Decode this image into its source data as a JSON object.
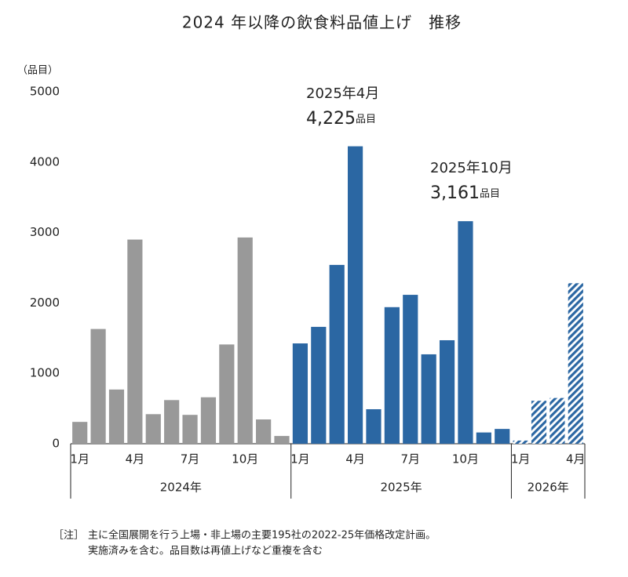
{
  "chart_data": {
    "type": "bar",
    "title": "2024 年以降の飲食料品値上げ　推移",
    "y_label": "（品目）",
    "ylim": [
      0,
      5000
    ],
    "yticks": [
      0,
      1000,
      2000,
      3000,
      4000,
      5000
    ],
    "grid": false,
    "groups": [
      {
        "label": "2024年",
        "color": "#999999",
        "hatched": false,
        "categories": [
          "1月",
          null,
          null,
          "4月",
          null,
          null,
          "7月",
          null,
          null,
          "10月",
          null,
          null
        ],
        "values": [
          310,
          1630,
          770,
          2900,
          420,
          620,
          410,
          660,
          1410,
          2930,
          345,
          110
        ]
      },
      {
        "label": "2025年",
        "color": "#2b67a3",
        "hatched": false,
        "categories": [
          "1月",
          null,
          null,
          "4月",
          null,
          null,
          "7月",
          null,
          null,
          "10月",
          null,
          null
        ],
        "values": [
          1425,
          1660,
          2540,
          4225,
          490,
          1940,
          2115,
          1270,
          1470,
          3161,
          160,
          210
        ]
      },
      {
        "label": "2026年",
        "color": "#2b67a3",
        "hatched": true,
        "categories": [
          "1月",
          null,
          null,
          "4月"
        ],
        "values": [
          45,
          610,
          650,
          2280
        ]
      }
    ],
    "annotations": [
      {
        "label": "2025年4月",
        "value_label": "4,225",
        "unit": "品目"
      },
      {
        "label": "2025年10月",
        "value_label": "3,161",
        "unit": "品目"
      }
    ],
    "note_mark": "［注］",
    "note_lines": [
      "主に全国展開を行う上場・非上場の主要195社の2022-25年価格改定計画。",
      "実施済みを含む。品目数は再値上げなど重複を含む"
    ]
  }
}
